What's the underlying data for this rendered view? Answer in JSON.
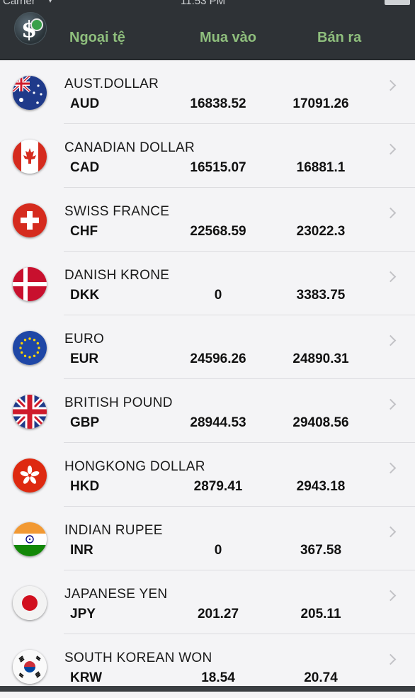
{
  "status": {
    "carrier": "Carrier",
    "time": "11:53 PM"
  },
  "header": {
    "col_currency": "Ngoại tệ",
    "col_buy": "Mua vào",
    "col_sell": "Bán ra"
  },
  "rows": [
    {
      "name": "AUST.DOLLAR",
      "code": "AUD",
      "buy": "16838.52",
      "sell": "17091.26",
      "flag": "australia-flag-icon"
    },
    {
      "name": "CANADIAN DOLLAR",
      "code": "CAD",
      "buy": "16515.07",
      "sell": "16881.1",
      "flag": "canada-flag-icon"
    },
    {
      "name": "SWISS FRANCE",
      "code": "CHF",
      "buy": "22568.59",
      "sell": "23022.3",
      "flag": "switzerland-flag-icon"
    },
    {
      "name": "DANISH KRONE",
      "code": "DKK",
      "buy": "0",
      "sell": "3383.75",
      "flag": "denmark-flag-icon"
    },
    {
      "name": "EURO",
      "code": "EUR",
      "buy": "24596.26",
      "sell": "24890.31",
      "flag": "eu-flag-icon"
    },
    {
      "name": "BRITISH POUND",
      "code": "GBP",
      "buy": "28944.53",
      "sell": "29408.56",
      "flag": "uk-flag-icon"
    },
    {
      "name": "HONGKONG DOLLAR",
      "code": "HKD",
      "buy": "2879.41",
      "sell": "2943.18",
      "flag": "hongkong-flag-icon"
    },
    {
      "name": "INDIAN RUPEE",
      "code": "INR",
      "buy": "0",
      "sell": "367.58",
      "flag": "india-flag-icon"
    },
    {
      "name": "JAPANESE YEN",
      "code": "JPY",
      "buy": "201.27",
      "sell": "205.11",
      "flag": "japan-flag-icon"
    },
    {
      "name": "SOUTH KOREAN WON",
      "code": "KRW",
      "buy": "18.54",
      "sell": "20.74",
      "flag": "southkorea-flag-icon"
    }
  ]
}
